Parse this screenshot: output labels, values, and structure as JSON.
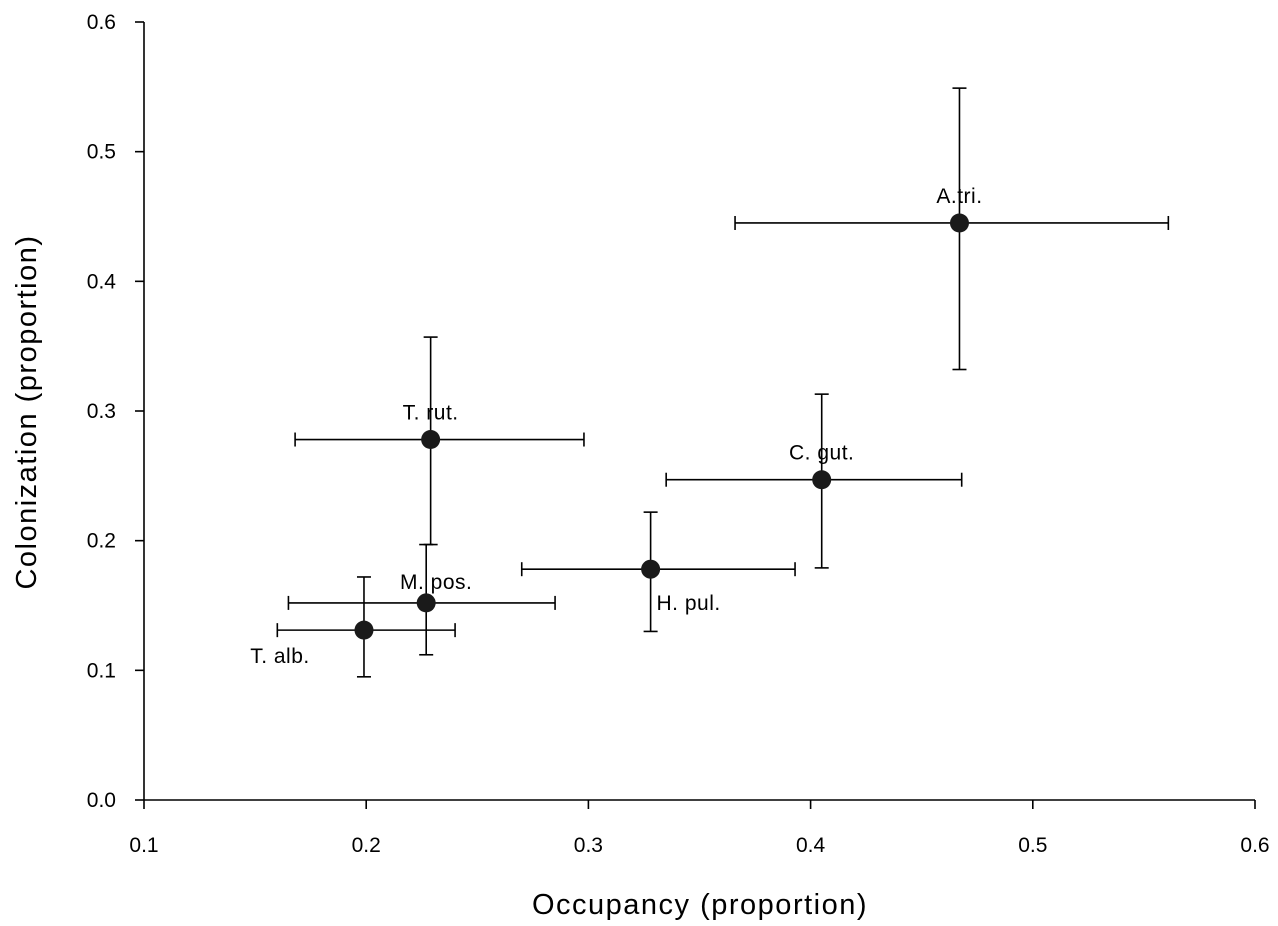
{
  "chart_data": {
    "type": "scatter",
    "xlabel": "Occupancy (proportion)",
    "ylabel": "Colonization (proportion)",
    "xlim": [
      0.1,
      0.6
    ],
    "ylim": [
      0.0,
      0.6
    ],
    "x_ticks": [
      "0.1",
      "0.2",
      "0.3",
      "0.4",
      "0.5",
      "0.6"
    ],
    "y_ticks": [
      "0.0",
      "0.1",
      "0.2",
      "0.3",
      "0.4",
      "0.5",
      "0.6"
    ],
    "x_tick_values": [
      0.1,
      0.2,
      0.3,
      0.4,
      0.5,
      0.6
    ],
    "y_tick_values": [
      0.0,
      0.1,
      0.2,
      0.3,
      0.4,
      0.5,
      0.6
    ],
    "grid": false,
    "points": [
      {
        "label": "A.tri.",
        "x": 0.467,
        "y": 0.445,
        "x_low": 0.366,
        "x_high": 0.561,
        "y_low": 0.332,
        "y_high": 0.549,
        "label_pos": "above"
      },
      {
        "label": "T. rut.",
        "x": 0.229,
        "y": 0.278,
        "x_low": 0.168,
        "x_high": 0.298,
        "y_low": 0.197,
        "y_high": 0.357,
        "label_pos": "above"
      },
      {
        "label": "C. gut.",
        "x": 0.405,
        "y": 0.247,
        "x_low": 0.335,
        "x_high": 0.468,
        "y_low": 0.179,
        "y_high": 0.313,
        "label_pos": "above"
      },
      {
        "label": "H. pul.",
        "x": 0.328,
        "y": 0.178,
        "x_low": 0.27,
        "x_high": 0.393,
        "y_low": 0.13,
        "y_high": 0.222,
        "label_pos": "below-right"
      },
      {
        "label": "M. pos.",
        "x": 0.227,
        "y": 0.152,
        "x_low": 0.165,
        "x_high": 0.285,
        "y_low": 0.112,
        "y_high": 0.197,
        "label_pos": "above-right"
      },
      {
        "label": "T. alb.",
        "x": 0.199,
        "y": 0.131,
        "x_low": 0.16,
        "x_high": 0.24,
        "y_low": 0.095,
        "y_high": 0.172,
        "label_pos": "below-left"
      }
    ]
  }
}
